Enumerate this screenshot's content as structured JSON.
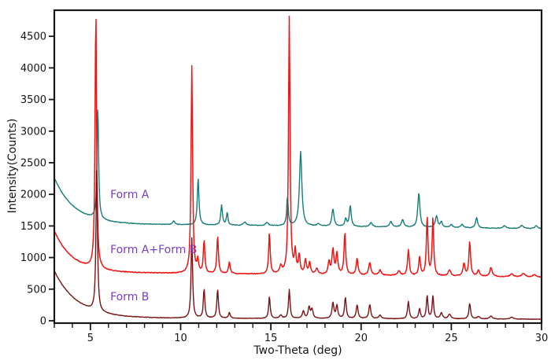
{
  "chart_data": {
    "type": "line",
    "title": "",
    "xlabel": "Two-Theta (deg)",
    "ylabel": "Intensity(Counts)",
    "x_range": [
      3,
      30
    ],
    "y_range": [
      0,
      4950
    ],
    "x_major_ticks": [
      5,
      10,
      15,
      20,
      25,
      30
    ],
    "x_minor_tick_step": 1,
    "y_major_ticks": [
      0,
      500,
      1000,
      1500,
      2000,
      2500,
      3000,
      3500,
      4000,
      4500
    ],
    "grid": false,
    "legend_position": "none",
    "background": "#ffffff",
    "frame_color": "#161616",
    "annotations": [
      {
        "text": "Form A",
        "x": 6.1,
        "y": 1975,
        "color": "#7B3EC0"
      },
      {
        "text": "Form A+Form B",
        "x": 6.1,
        "y": 1110,
        "color": "#7B3EC0"
      },
      {
        "text": "Form B",
        "x": 6.1,
        "y": 360,
        "color": "#7B3EC0"
      }
    ],
    "series": [
      {
        "name": "Form A",
        "color": "#177D76",
        "baseline_start": 1540,
        "baseline_end": 1455,
        "decay_amp": 720,
        "decay_tau": 1.1,
        "noise": 5,
        "peaks": [
          [
            5.41,
            1790,
            0.05
          ],
          [
            9.62,
            55,
            0.08
          ],
          [
            10.97,
            745,
            0.055
          ],
          [
            12.27,
            315,
            0.055
          ],
          [
            12.58,
            195,
            0.05
          ],
          [
            13.55,
            55,
            0.09
          ],
          [
            14.78,
            50,
            0.09
          ],
          [
            15.92,
            465,
            0.05
          ],
          [
            16.65,
            1175,
            0.08
          ],
          [
            17.64,
            35,
            0.09
          ],
          [
            18.44,
            275,
            0.07
          ],
          [
            19.15,
            120,
            0.06
          ],
          [
            19.4,
            330,
            0.06
          ],
          [
            20.55,
            65,
            0.09
          ],
          [
            21.65,
            85,
            0.09
          ],
          [
            22.3,
            115,
            0.08
          ],
          [
            23.2,
            540,
            0.07
          ],
          [
            24.18,
            185,
            0.07
          ],
          [
            24.45,
            90,
            0.07
          ],
          [
            25.0,
            50,
            0.08
          ],
          [
            25.6,
            55,
            0.08
          ],
          [
            26.4,
            160,
            0.07
          ],
          [
            27.95,
            40,
            0.1
          ],
          [
            28.9,
            50,
            0.1
          ],
          [
            29.7,
            45,
            0.1
          ]
        ]
      },
      {
        "name": "Form A+Form B",
        "color": "#EE1414",
        "baseline_start": 770,
        "baseline_end": 690,
        "decay_amp": 650,
        "decay_tau": 1.0,
        "noise": 6,
        "peaks": [
          [
            5.3,
            4100,
            0.05
          ],
          [
            10.62,
            3280,
            0.05
          ],
          [
            10.95,
            190,
            0.05
          ],
          [
            11.3,
            515,
            0.05
          ],
          [
            12.05,
            590,
            0.05
          ],
          [
            12.7,
            185,
            0.055
          ],
          [
            14.92,
            650,
            0.05
          ],
          [
            15.55,
            115,
            0.07
          ],
          [
            16.02,
            4060,
            0.05
          ],
          [
            16.35,
            340,
            0.055
          ],
          [
            16.57,
            290,
            0.055
          ],
          [
            16.92,
            220,
            0.06
          ],
          [
            17.15,
            180,
            0.06
          ],
          [
            17.55,
            90,
            0.08
          ],
          [
            18.22,
            200,
            0.06
          ],
          [
            18.44,
            400,
            0.06
          ],
          [
            18.66,
            330,
            0.06
          ],
          [
            19.1,
            660,
            0.055
          ],
          [
            19.78,
            260,
            0.06
          ],
          [
            20.48,
            200,
            0.07
          ],
          [
            21.05,
            80,
            0.08
          ],
          [
            22.1,
            75,
            0.08
          ],
          [
            22.62,
            410,
            0.055
          ],
          [
            23.24,
            300,
            0.055
          ],
          [
            23.66,
            930,
            0.05
          ],
          [
            23.98,
            930,
            0.05
          ],
          [
            24.9,
            95,
            0.08
          ],
          [
            25.7,
            200,
            0.065
          ],
          [
            26.02,
            550,
            0.055
          ],
          [
            26.5,
            90,
            0.08
          ],
          [
            27.2,
            140,
            0.08
          ],
          [
            28.35,
            45,
            0.1
          ],
          [
            29.0,
            55,
            0.1
          ],
          [
            29.6,
            40,
            0.1
          ]
        ]
      },
      {
        "name": "Form B",
        "color": "#7A1215",
        "baseline_start": 45,
        "baseline_end": 25,
        "decay_amp": 745,
        "decay_tau": 1.25,
        "noise": 4,
        "peaks": [
          [
            5.35,
            2300,
            0.05
          ],
          [
            10.62,
            1265,
            0.05
          ],
          [
            11.3,
            465,
            0.05
          ],
          [
            12.05,
            460,
            0.05
          ],
          [
            12.7,
            90,
            0.055
          ],
          [
            14.92,
            350,
            0.05
          ],
          [
            15.55,
            55,
            0.07
          ],
          [
            16.02,
            455,
            0.05
          ],
          [
            16.8,
            115,
            0.065
          ],
          [
            17.12,
            175,
            0.065
          ],
          [
            17.28,
            140,
            0.065
          ],
          [
            18.44,
            250,
            0.06
          ],
          [
            18.66,
            200,
            0.06
          ],
          [
            19.13,
            335,
            0.055
          ],
          [
            19.78,
            215,
            0.06
          ],
          [
            20.48,
            225,
            0.06
          ],
          [
            21.05,
            55,
            0.08
          ],
          [
            22.62,
            270,
            0.055
          ],
          [
            23.24,
            160,
            0.055
          ],
          [
            23.66,
            370,
            0.05
          ],
          [
            23.98,
            370,
            0.05
          ],
          [
            24.45,
            95,
            0.07
          ],
          [
            24.9,
            75,
            0.08
          ],
          [
            26.02,
            250,
            0.055
          ],
          [
            26.5,
            40,
            0.08
          ],
          [
            27.2,
            45,
            0.09
          ],
          [
            28.35,
            30,
            0.1
          ]
        ]
      }
    ]
  }
}
